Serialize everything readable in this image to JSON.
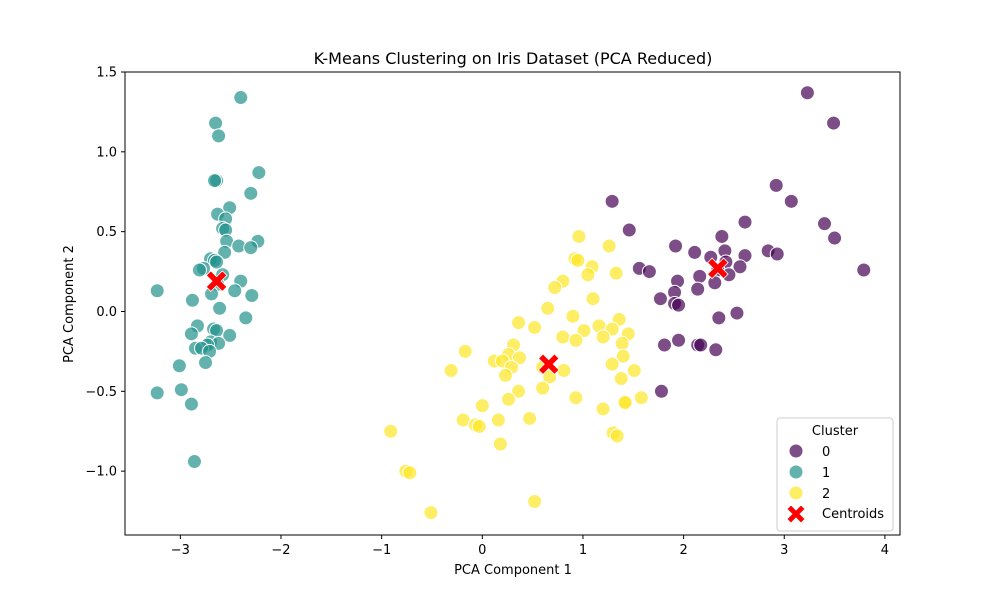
{
  "chart_data": {
    "type": "scatter",
    "title": "K-Means Clustering on Iris Dataset (PCA Reduced)",
    "xlabel": "PCA Component 1",
    "ylabel": "PCA Component 2",
    "xlim": [
      -3.55,
      4.15
    ],
    "ylim": [
      -1.4,
      1.5
    ],
    "xticks": [
      -3,
      -2,
      -1,
      0,
      1,
      2,
      3,
      4
    ],
    "yticks": [
      -1.0,
      -0.5,
      0.0,
      0.5,
      1.0,
      1.5
    ],
    "grid": false,
    "legend": {
      "title": "Cluster",
      "placement": "lower-right",
      "entries": [
        "0",
        "1",
        "2",
        "Centroids"
      ]
    },
    "series": [
      {
        "name": "0",
        "color": "#440154",
        "points": [
          [
            3.23,
            1.37
          ],
          [
            3.49,
            1.18
          ],
          [
            2.92,
            0.79
          ],
          [
            3.07,
            0.69
          ],
          [
            1.29,
            0.69
          ],
          [
            2.61,
            0.56
          ],
          [
            3.4,
            0.55
          ],
          [
            1.46,
            0.51
          ],
          [
            3.5,
            0.46
          ],
          [
            2.38,
            0.47
          ],
          [
            1.92,
            0.41
          ],
          [
            2.11,
            0.37
          ],
          [
            2.41,
            0.38
          ],
          [
            2.84,
            0.38
          ],
          [
            2.93,
            0.36
          ],
          [
            2.61,
            0.35
          ],
          [
            2.27,
            0.34
          ],
          [
            2.42,
            0.31
          ],
          [
            2.56,
            0.28
          ],
          [
            1.56,
            0.27
          ],
          [
            1.66,
            0.25
          ],
          [
            2.34,
            0.26
          ],
          [
            3.79,
            0.26
          ],
          [
            2.16,
            0.22
          ],
          [
            2.45,
            0.23
          ],
          [
            1.94,
            0.19
          ],
          [
            2.31,
            0.18
          ],
          [
            2.14,
            0.14
          ],
          [
            1.91,
            0.12
          ],
          [
            1.77,
            0.08
          ],
          [
            1.91,
            0.05
          ],
          [
            1.95,
            0.04
          ],
          [
            2.53,
            -0.01
          ],
          [
            2.35,
            -0.04
          ],
          [
            1.81,
            -0.21
          ],
          [
            1.95,
            -0.18
          ],
          [
            2.14,
            -0.21
          ],
          [
            2.17,
            -0.21
          ],
          [
            2.32,
            -0.24
          ],
          [
            1.78,
            -0.5
          ]
        ]
      },
      {
        "name": "1",
        "color": "#21918c",
        "points": [
          [
            -2.4,
            1.34
          ],
          [
            -2.65,
            1.18
          ],
          [
            -2.62,
            1.1
          ],
          [
            -2.22,
            0.87
          ],
          [
            -2.64,
            0.82
          ],
          [
            -2.66,
            0.82
          ],
          [
            -2.3,
            0.74
          ],
          [
            -2.51,
            0.65
          ],
          [
            -2.63,
            0.61
          ],
          [
            -2.55,
            0.58
          ],
          [
            -2.58,
            0.52
          ],
          [
            -2.55,
            0.51
          ],
          [
            -2.54,
            0.44
          ],
          [
            -2.23,
            0.44
          ],
          [
            -2.42,
            0.41
          ],
          [
            -2.3,
            0.4
          ],
          [
            -2.56,
            0.37
          ],
          [
            -2.7,
            0.33
          ],
          [
            -2.66,
            0.32
          ],
          [
            -2.64,
            0.31
          ],
          [
            -2.77,
            0.27
          ],
          [
            -2.81,
            0.26
          ],
          [
            -2.58,
            0.23
          ],
          [
            -2.63,
            0.17
          ],
          [
            -2.4,
            0.19
          ],
          [
            -2.46,
            0.13
          ],
          [
            -2.69,
            0.11
          ],
          [
            -2.29,
            0.1
          ],
          [
            -3.23,
            0.13
          ],
          [
            -2.88,
            0.07
          ],
          [
            -2.61,
            0.02
          ],
          [
            -2.35,
            -0.04
          ],
          [
            -2.83,
            -0.09
          ],
          [
            -2.67,
            -0.11
          ],
          [
            -2.64,
            -0.12
          ],
          [
            -2.89,
            -0.14
          ],
          [
            -2.51,
            -0.15
          ],
          [
            -2.7,
            -0.19
          ],
          [
            -2.62,
            -0.2
          ],
          [
            -2.73,
            -0.21
          ],
          [
            -2.85,
            -0.23
          ],
          [
            -2.79,
            -0.23
          ],
          [
            -2.71,
            -0.25
          ],
          [
            -2.75,
            -0.32
          ],
          [
            -3.01,
            -0.34
          ],
          [
            -2.99,
            -0.49
          ],
          [
            -3.23,
            -0.51
          ],
          [
            -2.89,
            -0.58
          ],
          [
            -2.86,
            -0.94
          ]
        ]
      },
      {
        "name": "2",
        "color": "#fde725",
        "points": [
          [
            0.96,
            0.47
          ],
          [
            1.26,
            0.41
          ],
          [
            0.92,
            0.33
          ],
          [
            0.95,
            0.32
          ],
          [
            1.09,
            0.28
          ],
          [
            1.05,
            0.23
          ],
          [
            1.33,
            0.24
          ],
          [
            0.8,
            0.19
          ],
          [
            0.72,
            0.15
          ],
          [
            1.1,
            0.08
          ],
          [
            0.65,
            0.02
          ],
          [
            0.9,
            -0.03
          ],
          [
            1.36,
            -0.05
          ],
          [
            0.36,
            -0.07
          ],
          [
            0.52,
            -0.1
          ],
          [
            1.16,
            -0.09
          ],
          [
            1.01,
            -0.12
          ],
          [
            1.29,
            -0.11
          ],
          [
            1.45,
            -0.14
          ],
          [
            0.8,
            -0.16
          ],
          [
            1.2,
            -0.16
          ],
          [
            0.93,
            -0.18
          ],
          [
            1.39,
            -0.2
          ],
          [
            0.31,
            -0.21
          ],
          [
            0.26,
            -0.27
          ],
          [
            0.37,
            -0.29
          ],
          [
            1.4,
            -0.28
          ],
          [
            -0.17,
            -0.25
          ],
          [
            0.12,
            -0.31
          ],
          [
            0.2,
            -0.31
          ],
          [
            0.29,
            -0.35
          ],
          [
            1.29,
            -0.33
          ],
          [
            0.6,
            -0.35
          ],
          [
            -0.31,
            -0.37
          ],
          [
            0.23,
            -0.4
          ],
          [
            0.81,
            -0.37
          ],
          [
            0.67,
            -0.41
          ],
          [
            1.51,
            -0.37
          ],
          [
            1.38,
            -0.42
          ],
          [
            0.6,
            -0.48
          ],
          [
            0.36,
            -0.5
          ],
          [
            0.26,
            -0.55
          ],
          [
            0.93,
            -0.54
          ],
          [
            1.41,
            -0.57
          ],
          [
            1.42,
            -0.57
          ],
          [
            1.58,
            -0.54
          ],
          [
            1.2,
            -0.61
          ],
          [
            0.47,
            -0.67
          ],
          [
            -0.19,
            -0.68
          ],
          [
            0.16,
            -0.68
          ],
          [
            -0.07,
            -0.71
          ],
          [
            -0.03,
            -0.72
          ],
          [
            0.0,
            -0.59
          ],
          [
            1.3,
            -0.76
          ],
          [
            1.34,
            -0.78
          ],
          [
            0.18,
            -0.83
          ],
          [
            -0.91,
            -0.75
          ],
          [
            -0.76,
            -1.0
          ],
          [
            -0.72,
            -1.01
          ],
          [
            0.52,
            -1.19
          ],
          [
            -0.51,
            -1.26
          ]
        ]
      }
    ],
    "centroids": {
      "name": "Centroids",
      "color": "#ff0000",
      "points": [
        [
          -2.64,
          0.19
        ],
        [
          2.34,
          0.27
        ],
        [
          0.66,
          -0.33
        ]
      ]
    }
  }
}
